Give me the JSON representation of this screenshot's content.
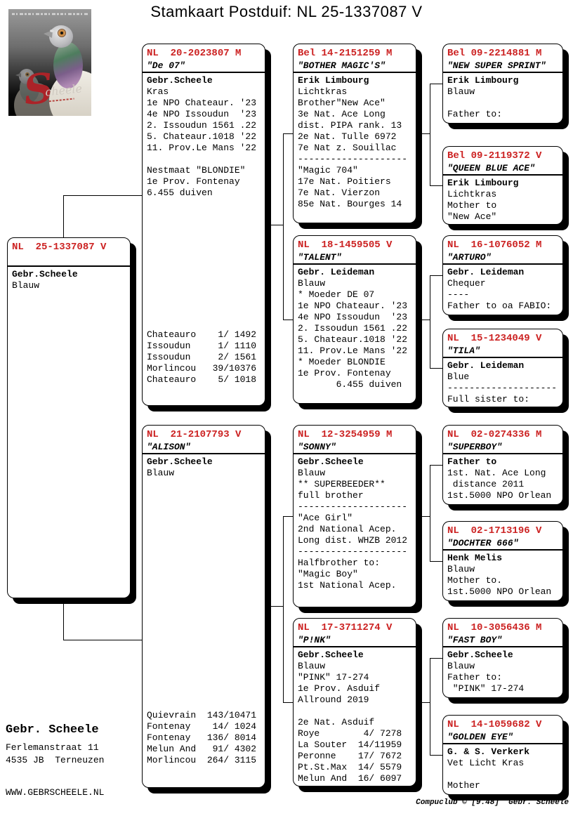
{
  "title": "Stamkaart Postduif: NL  25-1337087 V",
  "logo": {
    "initial": "S",
    "script": "cheele"
  },
  "pedigree": {
    "subject": {
      "ring": "NL  25-1337087 V",
      "name": "",
      "lines": [
        "Gebr.Scheele",
        "Blauw"
      ]
    },
    "sire": {
      "ring": "NL  20-2023807 M",
      "name": "\"De 07\"",
      "lines": [
        "Gebr.Scheele",
        "Kras",
        "1e NPO Chateaur. '23",
        "4e NPO Issoudun  '23",
        "2. Issoudun 1561 .22",
        "5. Chateaur.1018 '22",
        "11. Prov.Le Mans '22",
        "",
        "Nestmaat \"BLONDIE\"",
        "1e Prov. Fontenay",
        "6.455 duiven"
      ],
      "results": [
        "Chateauro    1/ 1492",
        "Issoudun     1/ 1110",
        "Issoudun     2/ 1561",
        "Morlincou   39/10376",
        "Chateauro    5/ 1018"
      ]
    },
    "dam": {
      "ring": "NL  21-2107793 V",
      "name": "\"ALISON\"",
      "lines": [
        "Gebr.Scheele",
        "Blauw"
      ],
      "results": [
        "Quievrain  143/10471",
        "Fontenay    14/ 1024",
        "Fontenay   136/ 8014",
        "Melun And   91/ 4302",
        "Morlincou  264/ 3115"
      ]
    },
    "sire_sire": {
      "ring": "Bel 14-2151259 M",
      "name": "\"BOTHER MAGIC'S\"",
      "lines": [
        "Erik Limbourg",
        "Lichtkras",
        "Brother\"New Ace\"",
        "3e Nat. Ace Long",
        "dist. PIPA rank. 13",
        "2e Nat. Tulle 6972",
        "7e Nat z. Souillac",
        "--------------------",
        "\"Magic 704\"",
        "17e Nat. Poitiers",
        "7e Nat. Vierzon",
        "85e Nat. Bourges 14"
      ]
    },
    "sire_dam": {
      "ring": "NL  18-1459505 V",
      "name": "\"TALENT\"",
      "lines": [
        "Gebr. Leideman",
        "Blauw",
        "* Moeder DE 07",
        "1e NPO Chateaur. '23",
        "4e NPO Issoudun  '23",
        "2. Issoudun 1561 .22",
        "5. Chateaur.1018 '22",
        "11. Prov.Le Mans '22",
        "* Moeder BLONDIE",
        "1e Prov. Fontenay",
        "       6.455 duiven"
      ]
    },
    "dam_sire": {
      "ring": "NL  12-3254959 M",
      "name": "\"SONNY\"",
      "lines": [
        "Gebr.Scheele",
        "Blauw",
        "** SUPERBEEDER**",
        "full brother",
        "--------------------",
        "\"Ace Girl\"",
        "2nd National Acep.",
        "Long dist. WHZB 2012",
        "--------------------",
        "Halfbrother to:",
        "\"Magic Boy\"",
        "1st National Acep."
      ]
    },
    "dam_dam": {
      "ring": "NL  17-3711274 V",
      "name": "\"P!NK\"",
      "lines": [
        "Gebr.Scheele",
        "Blauw",
        "\"PINK\" 17-274",
        "1e Prov. Asduif",
        "Allround 2019",
        "",
        "2e Nat. Asduif",
        "Roye        4/ 7278",
        "La Souter  14/11959",
        "Peronne    17/ 7672",
        "Pt.St.Max  14/ 5579",
        "Melun And  16/ 6097"
      ]
    },
    "ss_sire": {
      "ring": "Bel 09-2214881 M",
      "name": "\"NEW SUPER SPRINT\"",
      "lines": [
        "Erik Limbourg",
        "Blauw",
        "",
        "Father to:"
      ]
    },
    "ss_dam": {
      "ring": "Bel 09-2119372 V",
      "name": "\"QUEEN BLUE ACE\"",
      "lines": [
        "Erik Limbourg",
        "Lichtkras",
        "Mother to",
        "\"New Ace\""
      ]
    },
    "sd_sire": {
      "ring": "NL  16-1076052 M",
      "name": "\"ARTURO\"",
      "lines": [
        "Gebr. Leideman",
        "Chequer",
        "----",
        "Father to oa FABIO:"
      ]
    },
    "sd_dam": {
      "ring": "NL  15-1234049 V",
      "name": "\"TILA\"",
      "lines": [
        "Gebr. Leideman",
        "Blue",
        "--------------------",
        "Full sister to:"
      ]
    },
    "ds_sire": {
      "ring": "NL  02-0274336 M",
      "name": "\"SUPERBOY\"",
      "lines": [
        "Father to",
        "1st. Nat. Ace Long",
        " distance 2011",
        "1st.5000 NPO Orlean"
      ]
    },
    "ds_dam": {
      "ring": "NL  02-1713196 V",
      "name": "\"DOCHTER 666\"",
      "lines": [
        "Henk Melis",
        "Blauw",
        "Mother to.",
        "1st.5000 NPO Orlean"
      ]
    },
    "dd_sire": {
      "ring": "NL  10-3056436 M",
      "name": "\"FAST BOY\"",
      "lines": [
        "Gebr.Scheele",
        "Blauw",
        "Father to:",
        " \"PINK\" 17-274"
      ]
    },
    "dd_dam": {
      "ring": "NL  14-1059682 V",
      "name": "\"GOLDEN EYE\"",
      "lines": [
        "G. & S. Verkerk",
        "Vet Licht Kras",
        "",
        "Mother"
      ]
    }
  },
  "owner": {
    "name": "Gebr. Scheele",
    "address1": "Ferlemanstraat 11",
    "address2": "4535 JB  Terneuzen",
    "website": "WWW.GEBRSCHEELE.NL"
  },
  "footer": "Compuclub © [9.48]  Gebr. Scheele",
  "colors": {
    "accent_red": "#cc2222"
  }
}
